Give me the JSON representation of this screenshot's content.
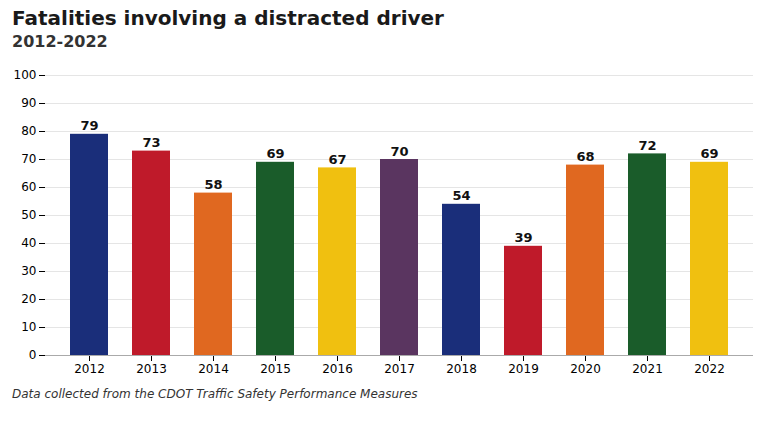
{
  "chart_data": {
    "type": "bar",
    "title": "Fatalities involving a distracted driver",
    "subtitle": "2012-2022",
    "caption": "Data collected from the CDOT Traffic Safety Performance Measures",
    "categories": [
      "2012",
      "2013",
      "2014",
      "2015",
      "2016",
      "2017",
      "2018",
      "2019",
      "2020",
      "2021",
      "2022"
    ],
    "values": [
      79,
      73,
      58,
      69,
      67,
      70,
      54,
      39,
      68,
      72,
      69
    ],
    "colors": [
      "#1a2e7a",
      "#bf1a2a",
      "#e06820",
      "#1a5c2a",
      "#f0c010",
      "#5a3560",
      "#1a2e7a",
      "#bf1a2a",
      "#e06820",
      "#1a5c2a",
      "#f0c010"
    ],
    "ylim": [
      0,
      100
    ],
    "yticks": [
      0,
      10,
      20,
      30,
      40,
      50,
      60,
      70,
      80,
      90,
      100
    ],
    "grid": true,
    "data_labels": true
  }
}
